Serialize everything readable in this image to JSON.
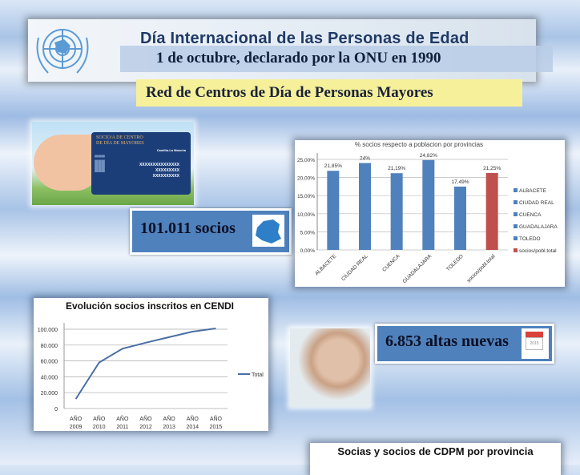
{
  "header": {
    "title": "Día Internacional de las Personas de Edad",
    "subtitle": "1 de octubre, declarado por la ONU en 1990",
    "network": "Red de Centros de Día de Personas Mayores"
  },
  "card": {
    "line1": "SOCIO/A DE CENTRO",
    "line2": "DE DÍA DE MAYORES",
    "brand": "Castilla-La Mancha",
    "codes": [
      "XXXXXXXXXXXXXXX",
      "XXXXXXXXX",
      "XXXXXXXXXX"
    ]
  },
  "stats": {
    "socios": "101.011 socios",
    "altas": "6.853 altas nuevas",
    "calendar_year": "2015"
  },
  "colors": {
    "bar": "#4f81bd",
    "total_bar": "#c0504d",
    "stat_fill": "#4f81bd",
    "line": "#4a6fa5"
  },
  "bottom": {
    "title": "Socias y socios de CDPM por provincia"
  },
  "chart_data": [
    {
      "type": "bar",
      "title": "% socios respecto a poblacion por provincias",
      "categories": [
        "ALBACETE",
        "CIUDAD REAL",
        "CUENCA",
        "GUADALAJARA",
        "TOLEDO",
        "socios/pobl.total"
      ],
      "values": [
        21.85,
        24,
        21.19,
        24.82,
        17.49,
        21.25
      ],
      "data_labels": [
        "21,85%",
        "24%",
        "21,19%",
        "24,82%",
        "17,49%",
        "21,25%"
      ],
      "yticks": [
        "0,00%",
        "5,00%",
        "10,00%",
        "15,00%",
        "20,00%",
        "25,00%"
      ],
      "ylim": [
        0,
        25
      ],
      "grid": true,
      "legend": "right",
      "legend_entries": [
        "ALBACETE",
        "CIUDAD REAL",
        "CUENCA",
        "GUADALAJARA",
        "TOLEDO",
        "socios/pobl.total"
      ]
    },
    {
      "type": "line",
      "title": "Evolución socios inscritos en CENDI",
      "categories": [
        "AÑO 2009",
        "AÑO 2010",
        "AÑO 2011",
        "AÑO 2012",
        "AÑO 2013",
        "AÑO 2014",
        "AÑO 2015"
      ],
      "series": [
        {
          "name": "Total",
          "values": [
            12000,
            58000,
            75500,
            83000,
            90000,
            97000,
            101011
          ]
        }
      ],
      "yticks": [
        "0",
        "20.000",
        "40.000",
        "60.000",
        "80.000",
        "100.000"
      ],
      "ylim": [
        0,
        100000
      ],
      "grid": true,
      "legend": "right"
    }
  ]
}
